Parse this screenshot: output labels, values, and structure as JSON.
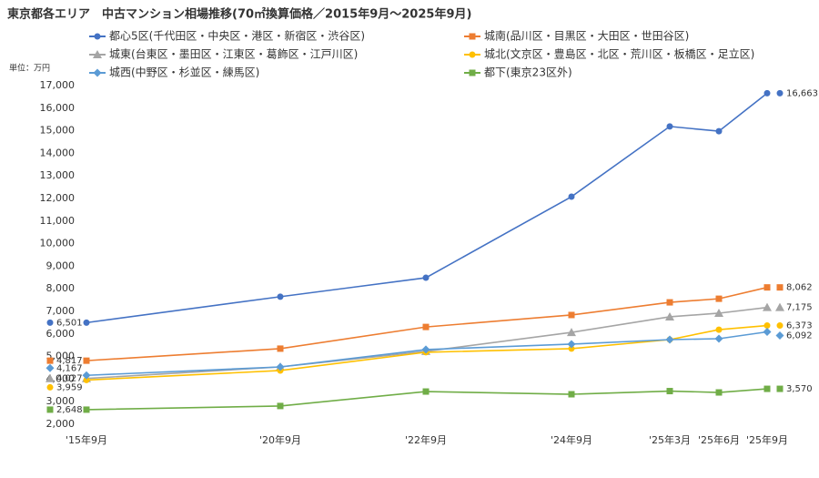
{
  "chart_data": {
    "type": "line",
    "title": "東京都各エリア　中古マンション相場推移(70㎡換算価格／2015年9月～2025年9月)",
    "y_unit_label": "単位：万円",
    "categories": [
      "'15年9月",
      "'20年9月",
      "'22年9月",
      "'24年9月",
      "'25年3月",
      "'25年6月",
      "'25年9月"
    ],
    "ylim": [
      2000,
      17000
    ],
    "yticks": [
      {
        "value": 2000,
        "label": "2,000"
      },
      {
        "value": 3000,
        "label": "3,000"
      },
      {
        "value": 4000,
        "label": "4,000"
      },
      {
        "value": 5000,
        "label": "5,000"
      },
      {
        "value": 6000,
        "label": "6,000"
      },
      {
        "value": 7000,
        "label": "7,000"
      },
      {
        "value": 8000,
        "label": "8,000"
      },
      {
        "value": 9000,
        "label": "9,000"
      },
      {
        "value": 10000,
        "label": "10,000"
      },
      {
        "value": 11000,
        "label": "11,000"
      },
      {
        "value": 12000,
        "label": "12,000"
      },
      {
        "value": 13000,
        "label": "13,000"
      },
      {
        "value": 14000,
        "label": "14,000"
      },
      {
        "value": 15000,
        "label": "15,000"
      },
      {
        "value": 16000,
        "label": "16,000"
      },
      {
        "value": 17000,
        "label": "17,000"
      }
    ],
    "grid": false,
    "series": [
      {
        "name": "都心5区(千代田区・中央区・港区・新宿区・渋谷区)",
        "color": "#4472c4",
        "marker": "circle",
        "values": [
          6501,
          7650,
          8490,
          12080,
          15190,
          14980,
          16663
        ],
        "value_labels": [
          "6,501",
          null,
          null,
          null,
          null,
          null,
          "16,663"
        ]
      },
      {
        "name": "城南(品川区・目黒区・大田区・世田谷区)",
        "color": "#ed7d31",
        "marker": "square",
        "values": [
          4817,
          5350,
          6310,
          6840,
          7400,
          7560,
          8062
        ],
        "value_labels": [
          "4,817",
          null,
          null,
          null,
          null,
          null,
          "8,062"
        ]
      },
      {
        "name": "城東(台東区・墨田区・江東区・葛飾区・江戸川区)",
        "color": "#a5a5a5",
        "marker": "triangle",
        "values": [
          4027,
          4540,
          5230,
          6070,
          6760,
          6920,
          7175
        ],
        "value_labels": [
          "4,027",
          null,
          null,
          null,
          null,
          null,
          "7,175"
        ]
      },
      {
        "name": "城北(文京区・豊島区・北区・荒川区・板橋区・足立区)",
        "color": "#ffc000",
        "marker": "circle",
        "values": [
          3959,
          4380,
          5190,
          5350,
          5750,
          6190,
          6373
        ],
        "value_labels": [
          "3,959",
          null,
          null,
          null,
          null,
          null,
          "6,373"
        ]
      },
      {
        "name": "城西(中野区・杉並区・練馬区)",
        "color": "#5b9bd5",
        "marker": "diamond",
        "values": [
          4167,
          4540,
          5310,
          5550,
          5750,
          5790,
          6092
        ],
        "value_labels": [
          "4,167",
          null,
          null,
          null,
          null,
          null,
          "6,092"
        ]
      },
      {
        "name": "都下(東京23区外)",
        "color": "#70ad47",
        "marker": "square",
        "values": [
          2648,
          2810,
          3450,
          3330,
          3470,
          3410,
          3570
        ],
        "value_labels": [
          "2,648",
          null,
          null,
          null,
          null,
          null,
          "3,570"
        ]
      }
    ]
  }
}
